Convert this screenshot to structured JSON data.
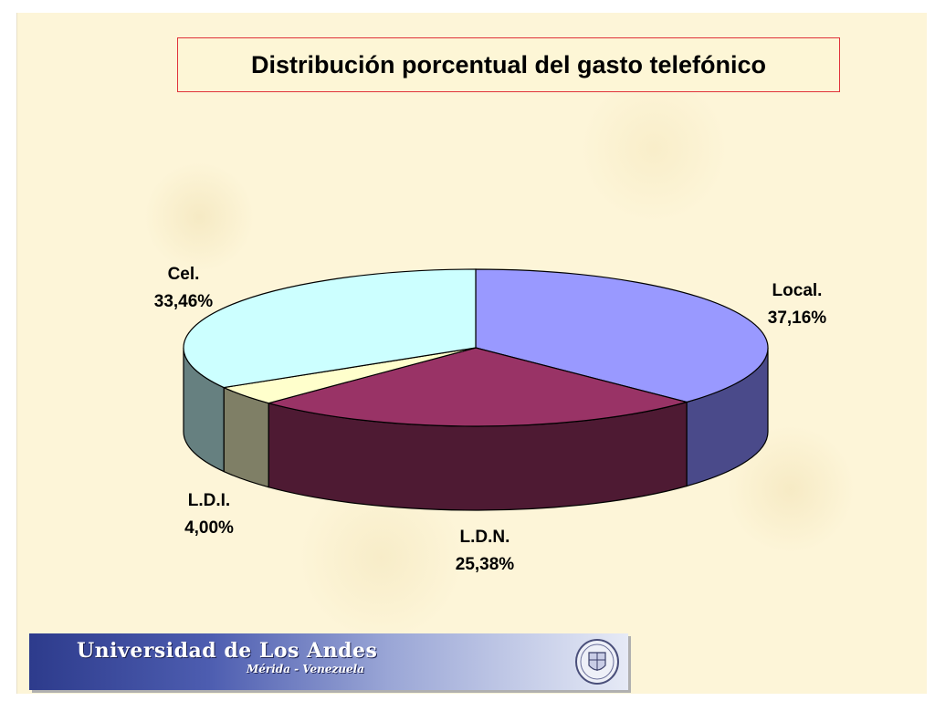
{
  "chart_data": {
    "type": "pie",
    "title": "Distribución porcentual del gasto telefónico",
    "slices": [
      {
        "name": "Local.",
        "value": 37.16,
        "value_label": "37,16%",
        "color": "#9999ff",
        "side_color": "#4a4a8a"
      },
      {
        "name": "L.D.N.",
        "value": 25.38,
        "value_label": "25,38%",
        "color": "#993366",
        "side_color": "#4e1a33"
      },
      {
        "name": "L.D.I.",
        "value": 4.0,
        "value_label": "4,00%",
        "color": "#ffffcc",
        "side_color": "#7f7f66"
      },
      {
        "name": "Cel.",
        "value": 33.46,
        "value_label": "33,46%",
        "color": "#ccffff",
        "side_color": "#668080"
      }
    ]
  },
  "footer": {
    "university_name": "Universidad de Los Andes",
    "location": "Mérida - Venezuela",
    "seal_icon": "university-seal-icon"
  }
}
